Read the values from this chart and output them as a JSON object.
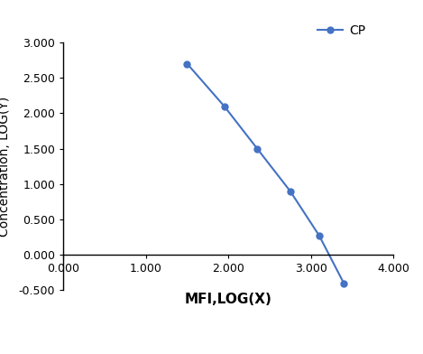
{
  "x": [
    1.5,
    1.95,
    2.35,
    2.75,
    3.1,
    3.4
  ],
  "y": [
    2.7,
    2.1,
    1.5,
    0.9,
    0.275,
    -0.4
  ],
  "line_color": "#4472C4",
  "marker": "o",
  "marker_size": 5,
  "legend_label": "CP",
  "xlabel": "MFI,LOG(X)",
  "ylabel": "Concentration, LOG(Y)",
  "xlim": [
    0.0,
    4.0
  ],
  "ylim": [
    -0.5,
    3.0
  ],
  "xticks": [
    0.0,
    1.0,
    2.0,
    3.0,
    4.0
  ],
  "yticks": [
    -0.5,
    0.0,
    0.5,
    1.0,
    1.5,
    2.0,
    2.5,
    3.0
  ],
  "xlabel_fontsize": 11,
  "ylabel_fontsize": 10,
  "tick_labelsize": 9,
  "legend_fontsize": 10,
  "background_color": "#ffffff"
}
